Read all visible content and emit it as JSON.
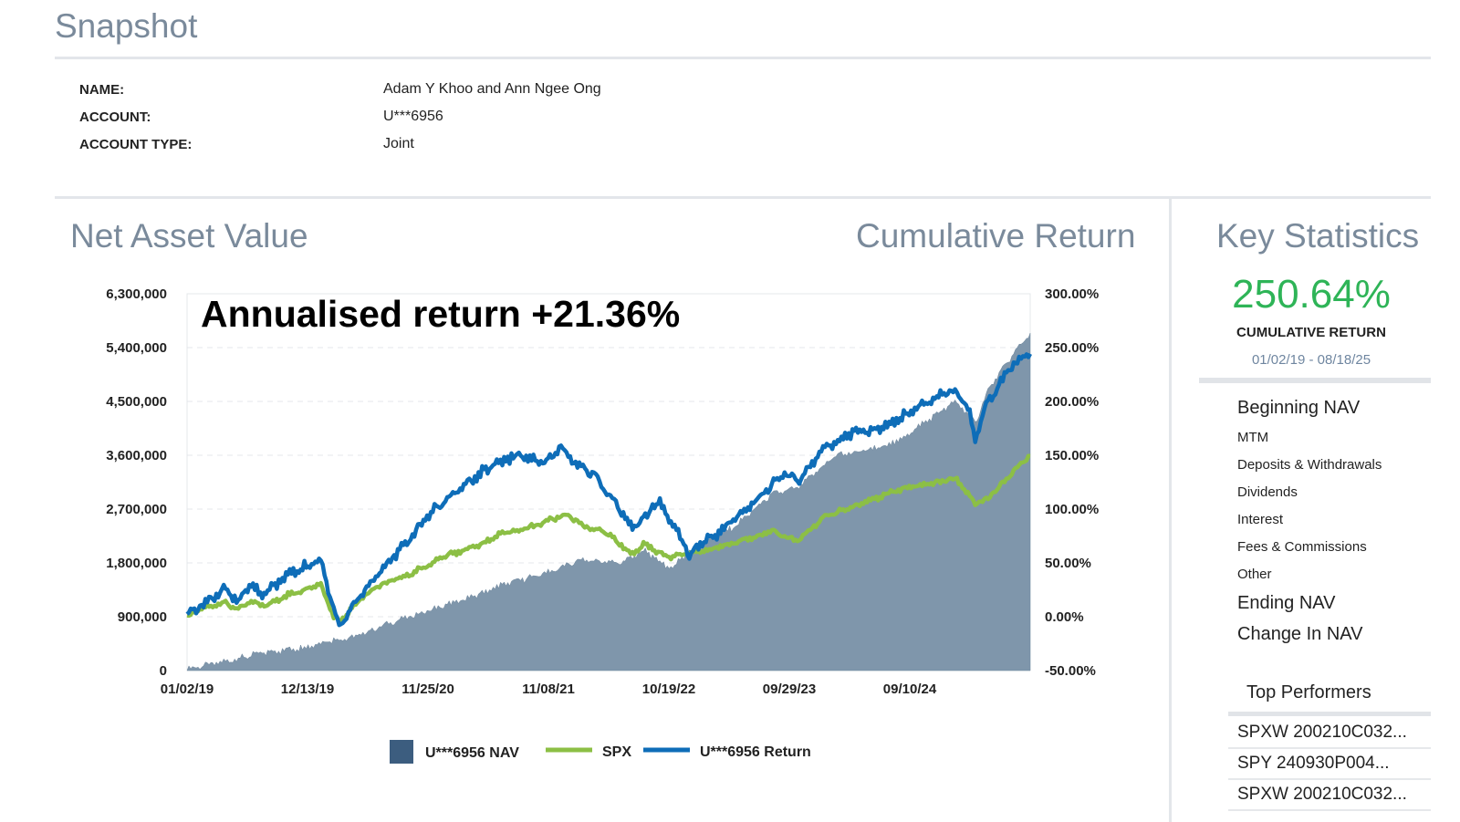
{
  "snapshot": {
    "title": "Snapshot",
    "name_label": "NAME:",
    "name_value": "Adam Y Khoo and Ann Ngee Ong",
    "account_label": "ACCOUNT:",
    "account_value": "U***6956",
    "type_label": "ACCOUNT TYPE:",
    "type_value": "Joint"
  },
  "chart": {
    "left_title": "Net Asset Value",
    "right_title": "Cumulative Return",
    "annotation": "Annualised return +21.36%"
  },
  "key_stats": {
    "title": "Key Statistics",
    "cumulative_return": "250.64%",
    "cumulative_label": "CUMULATIVE RETURN",
    "date_range": "01/02/19 - 08/18/25",
    "items": [
      {
        "label": "Beginning NAV",
        "bold": true
      },
      {
        "label": "MTM",
        "bold": false
      },
      {
        "label": "Deposits & Withdrawals",
        "bold": false
      },
      {
        "label": "Dividends",
        "bold": false
      },
      {
        "label": "Interest",
        "bold": false
      },
      {
        "label": "Fees & Commissions",
        "bold": false
      },
      {
        "label": "Other",
        "bold": false
      },
      {
        "label": "Ending NAV",
        "bold": true
      },
      {
        "label": "Change In NAV",
        "bold": true
      }
    ],
    "top_performers_title": "Top Performers",
    "top_performers": [
      "SPXW  200210C032...",
      "SPY   240930P004...",
      "SPXW  200210C032..."
    ]
  },
  "colors": {
    "nav_area": "#7f96ab",
    "nav_legend": "#3c5d7f",
    "spx": "#8cbf45",
    "return": "#0e6db8",
    "positive": "#2eb457",
    "title_gray": "#7a8a9b"
  },
  "chart_data": {
    "type": "area+line",
    "x_tick_labels": [
      "01/02/19",
      "12/13/19",
      "11/25/20",
      "11/08/21",
      "10/19/22",
      "09/29/23",
      "09/10/24"
    ],
    "y_left": {
      "ticks": [
        "6,300,000",
        "5,400,000",
        "4,500,000",
        "3,600,000",
        "2,700,000",
        "1,800,000",
        "900,000",
        "0"
      ],
      "range": [
        0,
        6300000
      ]
    },
    "y_right": {
      "ticks": [
        "300.00%",
        "250.00%",
        "200.00%",
        "150.00%",
        "100.00%",
        "50.00%",
        "0.00%",
        "-50.00%"
      ],
      "range": [
        -50,
        300
      ]
    },
    "x_domain_years": [
      2019.0,
      2025.63
    ],
    "grid": "horizontal dashed",
    "legend": "bottom-center",
    "series": [
      {
        "name": "U***6956 NAV",
        "kind": "area",
        "axis": "left",
        "points": [
          [
            2019.0,
            30000
          ],
          [
            2019.3,
            150000
          ],
          [
            2019.6,
            300000
          ],
          [
            2019.95,
            400000
          ],
          [
            2020.1,
            500000
          ],
          [
            2020.3,
            550000
          ],
          [
            2020.6,
            800000
          ],
          [
            2020.9,
            1000000
          ],
          [
            2021.2,
            1200000
          ],
          [
            2021.5,
            1450000
          ],
          [
            2021.85,
            1650000
          ],
          [
            2022.1,
            1850000
          ],
          [
            2022.4,
            1800000
          ],
          [
            2022.6,
            2000000
          ],
          [
            2022.8,
            1700000
          ],
          [
            2022.95,
            2000000
          ],
          [
            2023.3,
            2400000
          ],
          [
            2023.6,
            2950000
          ],
          [
            2023.8,
            3050000
          ],
          [
            2024.1,
            3600000
          ],
          [
            2024.4,
            3700000
          ],
          [
            2024.6,
            3850000
          ],
          [
            2024.9,
            4300000
          ],
          [
            2025.05,
            4500000
          ],
          [
            2025.2,
            4150000
          ],
          [
            2025.3,
            4700000
          ],
          [
            2025.5,
            5300000
          ],
          [
            2025.63,
            5650000
          ]
        ]
      },
      {
        "name": "SPX",
        "kind": "line",
        "axis": "right",
        "points": [
          [
            2019.0,
            0
          ],
          [
            2019.1,
            8
          ],
          [
            2019.3,
            13
          ],
          [
            2019.4,
            7
          ],
          [
            2019.5,
            14
          ],
          [
            2019.6,
            10
          ],
          [
            2019.8,
            20
          ],
          [
            2020.05,
            30
          ],
          [
            2020.15,
            0
          ],
          [
            2020.2,
            -5
          ],
          [
            2020.35,
            15
          ],
          [
            2020.5,
            28
          ],
          [
            2020.7,
            37
          ],
          [
            2020.9,
            48
          ],
          [
            2021.0,
            55
          ],
          [
            2021.3,
            67
          ],
          [
            2021.5,
            78
          ],
          [
            2021.7,
            83
          ],
          [
            2021.85,
            90
          ],
          [
            2022.0,
            95
          ],
          [
            2022.1,
            85
          ],
          [
            2022.3,
            78
          ],
          [
            2022.5,
            58
          ],
          [
            2022.6,
            68
          ],
          [
            2022.7,
            60
          ],
          [
            2022.8,
            56
          ],
          [
            2023.0,
            60
          ],
          [
            2023.2,
            65
          ],
          [
            2023.4,
            72
          ],
          [
            2023.6,
            80
          ],
          [
            2023.8,
            70
          ],
          [
            2024.0,
            92
          ],
          [
            2024.3,
            105
          ],
          [
            2024.6,
            118
          ],
          [
            2024.9,
            125
          ],
          [
            2025.05,
            128
          ],
          [
            2025.2,
            105
          ],
          [
            2025.3,
            110
          ],
          [
            2025.5,
            135
          ],
          [
            2025.63,
            150
          ]
        ]
      },
      {
        "name": "U***6956 Return",
        "kind": "line",
        "axis": "right",
        "points": [
          [
            2019.0,
            0
          ],
          [
            2019.1,
            10
          ],
          [
            2019.3,
            25
          ],
          [
            2019.4,
            15
          ],
          [
            2019.5,
            30
          ],
          [
            2019.6,
            20
          ],
          [
            2019.8,
            40
          ],
          [
            2020.05,
            52
          ],
          [
            2020.15,
            10
          ],
          [
            2020.2,
            -10
          ],
          [
            2020.3,
            10
          ],
          [
            2020.5,
            40
          ],
          [
            2020.7,
            65
          ],
          [
            2020.9,
            95
          ],
          [
            2021.0,
            105
          ],
          [
            2021.2,
            125
          ],
          [
            2021.4,
            140
          ],
          [
            2021.6,
            150
          ],
          [
            2021.8,
            143
          ],
          [
            2021.95,
            158
          ],
          [
            2022.05,
            142
          ],
          [
            2022.2,
            132
          ],
          [
            2022.3,
            115
          ],
          [
            2022.4,
            100
          ],
          [
            2022.5,
            82
          ],
          [
            2022.6,
            92
          ],
          [
            2022.7,
            108
          ],
          [
            2022.8,
            90
          ],
          [
            2022.9,
            70
          ],
          [
            2022.95,
            55
          ],
          [
            2023.0,
            65
          ],
          [
            2023.2,
            80
          ],
          [
            2023.4,
            100
          ],
          [
            2023.6,
            123
          ],
          [
            2023.7,
            135
          ],
          [
            2023.8,
            125
          ],
          [
            2024.0,
            155
          ],
          [
            2024.2,
            170
          ],
          [
            2024.4,
            173
          ],
          [
            2024.6,
            183
          ],
          [
            2024.8,
            200
          ],
          [
            2024.9,
            205
          ],
          [
            2025.05,
            210
          ],
          [
            2025.15,
            190
          ],
          [
            2025.2,
            165
          ],
          [
            2025.3,
            200
          ],
          [
            2025.5,
            235
          ],
          [
            2025.63,
            245
          ]
        ]
      }
    ]
  }
}
